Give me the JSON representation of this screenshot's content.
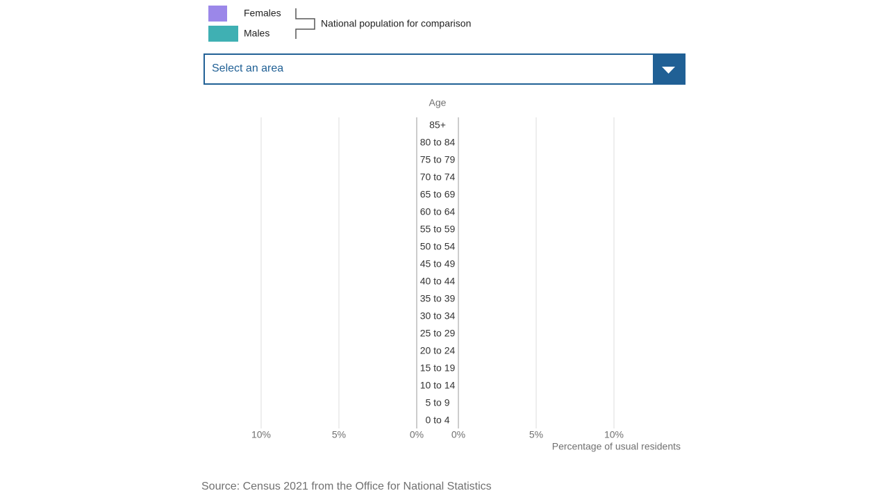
{
  "legend": {
    "items": [
      {
        "label": "Females",
        "color": "#9b87e9"
      },
      {
        "label": "Males",
        "color": "#3fb0b3"
      }
    ],
    "comparison": "National population for comparison"
  },
  "dropdown": {
    "placeholder": "Select an area"
  },
  "chart": {
    "y_title": "Age",
    "categories": [
      "0 to 4",
      "5 to 9",
      "10 to 14",
      "15 to 19",
      "20 to 24",
      "25 to 29",
      "30 to 34",
      "35 to 39",
      "40 to 44",
      "45 to 49",
      "50 to 54",
      "55 to 59",
      "60 to 64",
      "65 to 69",
      "70 to 74",
      "75 to 79",
      "80 to 84",
      "85+"
    ],
    "xlim": [
      0,
      10
    ],
    "left_ticks": [
      {
        "value": 10,
        "label": "10%"
      },
      {
        "value": 5,
        "label": "5%"
      },
      {
        "value": 0,
        "label": "0%"
      }
    ],
    "right_ticks": [
      {
        "value": 0,
        "label": "0%"
      },
      {
        "value": 5,
        "label": "5%"
      },
      {
        "value": 10,
        "label": "10%"
      }
    ],
    "x_title": "Percentage of usual residents"
  },
  "source": "Source: Census 2021 from the Office for National Statistics"
}
